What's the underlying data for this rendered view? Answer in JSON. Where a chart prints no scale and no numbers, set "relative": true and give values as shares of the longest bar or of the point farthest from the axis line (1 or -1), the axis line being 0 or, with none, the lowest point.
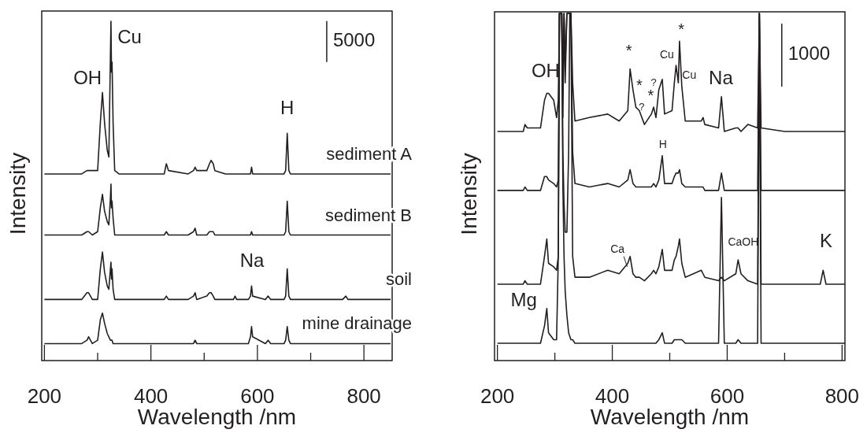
{
  "chart_data": [
    {
      "type": "line",
      "relative": true,
      "tick_labels": "x",
      "xlabel": "Wavelength /nm",
      "ylabel": "Intensity",
      "xlim": [
        195,
        853
      ],
      "xticks": [
        200,
        {
          "value": 300,
          "label": null
        },
        400,
        {
          "value": 500,
          "label": null
        },
        600,
        {
          "value": 700,
          "label": null
        },
        800
      ],
      "x": [
        200,
        270,
        280,
        283,
        290,
        300,
        305,
        309,
        313,
        318,
        321,
        324,
        325,
        326,
        327,
        329,
        332,
        340,
        400,
        425,
        429,
        433,
        470,
        480,
        483,
        486,
        505,
        510,
        513,
        517,
        520,
        540,
        555,
        558,
        561,
        583,
        587,
        589,
        591,
        615,
        620,
        625,
        650,
        653,
        656,
        659,
        662,
        760,
        766,
        770,
        850
      ],
      "series": [
        {
          "name": "sediment A",
          "color": "#231f20",
          "values": [
            0.55,
            0.55,
            0.56,
            0.56,
            0.56,
            0.56,
            0.7,
            0.79,
            0.7,
            0.62,
            0.6,
            0.9,
            1.0,
            0.85,
            0.88,
            0.7,
            0.56,
            0.55,
            0.55,
            0.55,
            0.58,
            0.56,
            0.55,
            0.56,
            0.57,
            0.56,
            0.56,
            0.58,
            0.59,
            0.58,
            0.56,
            0.55,
            0.55,
            0.55,
            0.55,
            0.55,
            0.55,
            0.57,
            0.55,
            0.55,
            0.55,
            0.55,
            0.55,
            0.56,
            0.67,
            0.56,
            0.55,
            0.55,
            0.55,
            0.55,
            0.55
          ]
        },
        {
          "name": "sediment B",
          "color": "#231f20",
          "values": [
            0.37,
            0.37,
            0.38,
            0.38,
            0.37,
            0.38,
            0.45,
            0.49,
            0.44,
            0.41,
            0.4,
            0.48,
            0.52,
            0.45,
            0.47,
            0.42,
            0.37,
            0.37,
            0.37,
            0.37,
            0.38,
            0.37,
            0.37,
            0.38,
            0.39,
            0.37,
            0.37,
            0.38,
            0.38,
            0.38,
            0.37,
            0.37,
            0.37,
            0.37,
            0.37,
            0.37,
            0.37,
            0.38,
            0.37,
            0.37,
            0.37,
            0.37,
            0.37,
            0.38,
            0.47,
            0.38,
            0.37,
            0.37,
            0.37,
            0.37,
            0.37
          ]
        },
        {
          "name": "soil",
          "color": "#231f20",
          "values": [
            0.18,
            0.18,
            0.2,
            0.2,
            0.18,
            0.18,
            0.27,
            0.32,
            0.26,
            0.22,
            0.21,
            0.27,
            0.29,
            0.24,
            0.27,
            0.21,
            0.18,
            0.18,
            0.18,
            0.18,
            0.19,
            0.18,
            0.18,
            0.19,
            0.2,
            0.18,
            0.19,
            0.2,
            0.2,
            0.19,
            0.18,
            0.18,
            0.18,
            0.19,
            0.18,
            0.18,
            0.19,
            0.22,
            0.19,
            0.18,
            0.19,
            0.18,
            0.18,
            0.19,
            0.27,
            0.19,
            0.18,
            0.18,
            0.19,
            0.18,
            0.18
          ]
        },
        {
          "name": "mine drainage",
          "color": "#231f20",
          "values": [
            0.05,
            0.05,
            0.06,
            0.07,
            0.05,
            0.06,
            0.12,
            0.14,
            0.11,
            0.08,
            0.07,
            0.06,
            0.06,
            0.06,
            0.06,
            0.05,
            0.05,
            0.05,
            0.05,
            0.05,
            0.05,
            0.05,
            0.05,
            0.05,
            0.06,
            0.05,
            0.05,
            0.05,
            0.05,
            0.05,
            0.05,
            0.05,
            0.05,
            0.05,
            0.05,
            0.05,
            0.07,
            0.1,
            0.07,
            0.05,
            0.06,
            0.05,
            0.05,
            0.06,
            0.1,
            0.06,
            0.05,
            0.05,
            0.05,
            0.05,
            0.05
          ]
        }
      ],
      "annotations": [
        "OH",
        "Cu",
        "H",
        "Na",
        "5000"
      ]
    },
    {
      "type": "line",
      "relative": true,
      "tick_labels": "x",
      "xlabel": "Wavelength /nm",
      "ylabel": "Intensity",
      "xlim": [
        195,
        805
      ],
      "xticks": [
        200,
        {
          "value": 300,
          "label": null
        },
        400,
        {
          "value": 500,
          "label": null
        },
        600,
        {
          "value": 700,
          "label": null
        },
        800
      ],
      "x": [
        200,
        245,
        248,
        252,
        275,
        282,
        286,
        289,
        298,
        303,
        306,
        308,
        310,
        312,
        314,
        316,
        318,
        321,
        324,
        326,
        328,
        331,
        335,
        360,
        392,
        412,
        427,
        431,
        436,
        441,
        447,
        456,
        468,
        472,
        476,
        481,
        487,
        491,
        504,
        508,
        511,
        515,
        517,
        521,
        527,
        555,
        558,
        561,
        585,
        590,
        595,
        615,
        619,
        624,
        636,
        653,
        656,
        659,
        700,
        762,
        767,
        772,
        805
      ],
      "series": [
        {
          "color": "#231f20",
          "values": [
            0.66,
            0.66,
            0.68,
            0.67,
            0.67,
            0.75,
            0.77,
            0.77,
            0.75,
            0.7,
            0.75,
            1,
            1,
            1,
            0.8,
            1,
            0.85,
            1,
            1,
            1,
            1,
            0.8,
            0.69,
            0.7,
            0.71,
            0.69,
            0.72,
            0.84,
            0.78,
            0.73,
            0.72,
            0.68,
            0.71,
            0.73,
            0.7,
            0.78,
            0.81,
            0.71,
            0.72,
            0.8,
            0.85,
            0.8,
            0.92,
            0.79,
            0.69,
            0.69,
            0.7,
            0.68,
            0.67,
            0.76,
            0.66,
            0.67,
            0.67,
            0.66,
            0.68,
            0.67,
            1,
            0.67,
            0.66,
            0.66,
            0.66,
            0.66,
            0.66
          ]
        },
        {
          "color": "#231f20",
          "values": [
            0.49,
            0.49,
            0.5,
            0.49,
            0.49,
            0.53,
            0.53,
            0.52,
            0.51,
            0.5,
            0.52,
            1,
            1,
            1,
            0.7,
            1,
            0.8,
            1,
            1,
            1,
            1,
            0.6,
            0.51,
            0.5,
            0.51,
            0.5,
            0.52,
            0.55,
            0.51,
            0.5,
            0.5,
            0.5,
            0.5,
            0.51,
            0.5,
            0.52,
            0.59,
            0.51,
            0.51,
            0.53,
            0.54,
            0.54,
            0.55,
            0.51,
            0.5,
            0.5,
            0.5,
            0.49,
            0.49,
            0.54,
            0.49,
            0.49,
            0.49,
            0.49,
            0.49,
            0.49,
            1,
            0.49,
            0.49,
            0.49,
            0.49,
            0.49,
            0.49
          ]
        },
        {
          "color": "#231f20",
          "values": [
            0.22,
            0.22,
            0.23,
            0.22,
            0.22,
            0.3,
            0.35,
            0.28,
            0.27,
            0.26,
            0.3,
            1,
            1,
            1,
            0.6,
            0.45,
            0.37,
            0.37,
            0.6,
            1,
            1,
            0.3,
            0.24,
            0.24,
            0.26,
            0.25,
            0.28,
            0.3,
            0.25,
            0.24,
            0.24,
            0.23,
            0.25,
            0.26,
            0.25,
            0.27,
            0.32,
            0.26,
            0.26,
            0.29,
            0.3,
            0.33,
            0.35,
            0.28,
            0.24,
            0.26,
            0.25,
            0.24,
            0.23,
            0.24,
            0.23,
            0.25,
            0.29,
            0.25,
            0.23,
            0.22,
            1,
            0.22,
            0.22,
            0.22,
            0.26,
            0.22,
            0.22
          ]
        },
        {
          "color": "#231f20",
          "values": [
            0.05,
            0.05,
            0.05,
            0.05,
            0.05,
            0.1,
            0.15,
            0.08,
            0.06,
            0.06,
            0.3,
            1,
            1,
            1,
            0.5,
            0.3,
            0.2,
            0.13,
            0.08,
            0.07,
            0.06,
            0.06,
            0.05,
            0.05,
            0.05,
            0.05,
            0.05,
            0.05,
            0.05,
            0.05,
            0.05,
            0.05,
            0.05,
            0.05,
            0.05,
            0.06,
            0.08,
            0.05,
            0.05,
            0.06,
            0.06,
            0.06,
            0.06,
            0.06,
            0.05,
            0.05,
            0.05,
            0.05,
            0.05,
            0.47,
            0.05,
            0.05,
            0.06,
            0.05,
            0.05,
            0.05,
            1,
            0.05,
            0.05,
            0.05,
            0.05,
            0.05,
            0.05
          ]
        }
      ],
      "annotations": [
        "OH",
        "*",
        "*",
        "?",
        "?",
        "*",
        "Cu",
        "*",
        "Cu",
        "Na",
        "1000",
        "H",
        "Ca",
        "CaOH",
        "K",
        "Mg"
      ]
    }
  ]
}
